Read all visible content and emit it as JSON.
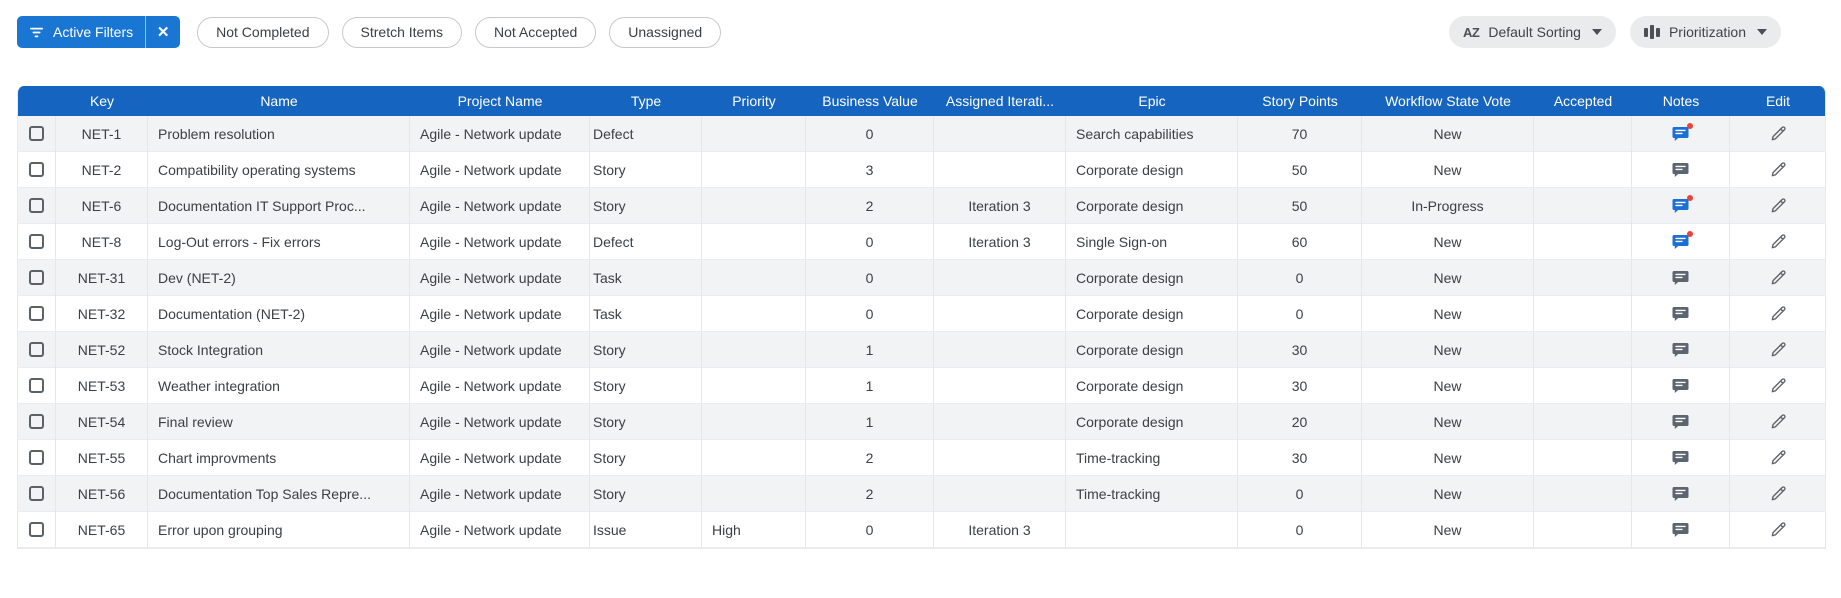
{
  "colors": {
    "header_bg": "#1565c0",
    "filters_button_bg": "#1976d2",
    "note_unread": "#1c6fd4",
    "note_read": "#5b6470",
    "unread_dot": "#ea4335"
  },
  "toolbar": {
    "active_filters": {
      "label": "Active Filters",
      "icon": "filter-lines",
      "close_icon": "x"
    },
    "filter_chips": [
      "Not Completed",
      "Stretch Items",
      "Not Accepted",
      "Unassigned"
    ],
    "sorting": {
      "label": "Default Sorting",
      "icon": "sort-alpha-az",
      "glyph": "AZ"
    },
    "view_mode": {
      "label": "Prioritization",
      "icon": "columns"
    }
  },
  "table": {
    "columns": [
      {
        "id": "select",
        "label": ""
      },
      {
        "id": "key",
        "label": "Key"
      },
      {
        "id": "name",
        "label": "Name"
      },
      {
        "id": "project_name",
        "label": "Project Name"
      },
      {
        "id": "type",
        "label": "Type"
      },
      {
        "id": "priority",
        "label": "Priority"
      },
      {
        "id": "business_value",
        "label": "Business Value"
      },
      {
        "id": "assigned_iteration",
        "label": "Assigned Iterati..."
      },
      {
        "id": "epic",
        "label": "Epic"
      },
      {
        "id": "story_points",
        "label": "Story Points"
      },
      {
        "id": "workflow_state_vote",
        "label": "Workflow State Vote"
      },
      {
        "id": "accepted",
        "label": "Accepted"
      },
      {
        "id": "notes",
        "label": "Notes"
      },
      {
        "id": "edit",
        "label": "Edit"
      }
    ],
    "rows": [
      {
        "key": "NET-1",
        "name": "Problem resolution",
        "project_name": "Agile - Network update",
        "type": "Defect",
        "priority": "",
        "business_value": "0",
        "assigned_iteration": "",
        "epic": "Search capabilities",
        "story_points": "70",
        "workflow_state_vote": "New",
        "accepted": "",
        "notes_unread": true
      },
      {
        "key": "NET-2",
        "name": "Compatibility operating systems",
        "project_name": "Agile - Network update",
        "type": "Story",
        "priority": "",
        "business_value": "3",
        "assigned_iteration": "",
        "epic": "Corporate design",
        "story_points": "50",
        "workflow_state_vote": "New",
        "accepted": "",
        "notes_unread": false
      },
      {
        "key": "NET-6",
        "name": "Documentation IT Support Proc...",
        "project_name": "Agile - Network update",
        "type": "Story",
        "priority": "",
        "business_value": "2",
        "assigned_iteration": "Iteration 3",
        "epic": "Corporate design",
        "story_points": "50",
        "workflow_state_vote": "In-Progress",
        "accepted": "",
        "notes_unread": true
      },
      {
        "key": "NET-8",
        "name": "Log-Out errors - Fix errors",
        "project_name": "Agile - Network update",
        "type": "Defect",
        "priority": "",
        "business_value": "0",
        "assigned_iteration": "Iteration 3",
        "epic": "Single Sign-on",
        "story_points": "60",
        "workflow_state_vote": "New",
        "accepted": "",
        "notes_unread": true
      },
      {
        "key": "NET-31",
        "name": "Dev (NET-2)",
        "project_name": "Agile - Network update",
        "type": "Task",
        "priority": "",
        "business_value": "0",
        "assigned_iteration": "",
        "epic": "Corporate design",
        "story_points": "0",
        "workflow_state_vote": "New",
        "accepted": "",
        "notes_unread": false
      },
      {
        "key": "NET-32",
        "name": "Documentation (NET-2)",
        "project_name": "Agile - Network update",
        "type": "Task",
        "priority": "",
        "business_value": "0",
        "assigned_iteration": "",
        "epic": "Corporate design",
        "story_points": "0",
        "workflow_state_vote": "New",
        "accepted": "",
        "notes_unread": false
      },
      {
        "key": "NET-52",
        "name": "Stock Integration",
        "project_name": "Agile - Network update",
        "type": "Story",
        "priority": "",
        "business_value": "1",
        "assigned_iteration": "",
        "epic": "Corporate design",
        "story_points": "30",
        "workflow_state_vote": "New",
        "accepted": "",
        "notes_unread": false
      },
      {
        "key": "NET-53",
        "name": "Weather integration",
        "project_name": "Agile - Network update",
        "type": "Story",
        "priority": "",
        "business_value": "1",
        "assigned_iteration": "",
        "epic": "Corporate design",
        "story_points": "30",
        "workflow_state_vote": "New",
        "accepted": "",
        "notes_unread": false
      },
      {
        "key": "NET-54",
        "name": "Final review",
        "project_name": "Agile - Network update",
        "type": "Story",
        "priority": "",
        "business_value": "1",
        "assigned_iteration": "",
        "epic": "Corporate design",
        "story_points": "20",
        "workflow_state_vote": "New",
        "accepted": "",
        "notes_unread": false
      },
      {
        "key": "NET-55",
        "name": "Chart improvments",
        "project_name": "Agile - Network update",
        "type": "Story",
        "priority": "",
        "business_value": "2",
        "assigned_iteration": "",
        "epic": "Time-tracking",
        "story_points": "30",
        "workflow_state_vote": "New",
        "accepted": "",
        "notes_unread": false
      },
      {
        "key": "NET-56",
        "name": "Documentation Top Sales Repre...",
        "project_name": "Agile - Network update",
        "type": "Story",
        "priority": "",
        "business_value": "2",
        "assigned_iteration": "",
        "epic": "Time-tracking",
        "story_points": "0",
        "workflow_state_vote": "New",
        "accepted": "",
        "notes_unread": false
      },
      {
        "key": "NET-65",
        "name": "Error upon grouping",
        "project_name": "Agile - Network update",
        "type": "Issue",
        "priority": "High",
        "business_value": "0",
        "assigned_iteration": "Iteration 3",
        "epic": "",
        "story_points": "0",
        "workflow_state_vote": "New",
        "accepted": "",
        "notes_unread": false
      }
    ]
  }
}
